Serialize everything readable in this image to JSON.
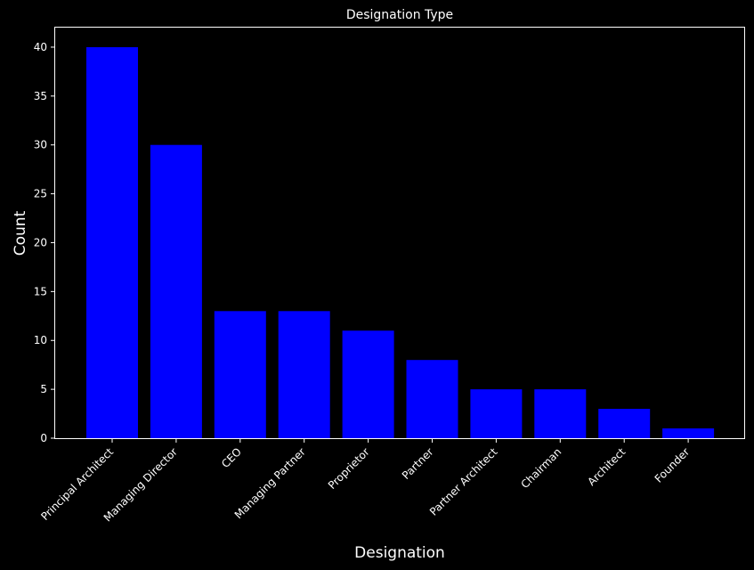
{
  "chart_data": {
    "type": "bar",
    "title": "Designation Type",
    "xlabel": "Designation",
    "ylabel": "Count",
    "categories": [
      "Principal Architect",
      "Managing Director",
      "CEO",
      "Managing Partner",
      "Proprietor",
      "Partner",
      "Partner Architect",
      "Chairman",
      "Architect",
      "Founder"
    ],
    "values": [
      40,
      30,
      13,
      13,
      11,
      8,
      5,
      5,
      3,
      1
    ],
    "ylim": [
      0,
      42
    ],
    "yticks": [
      0,
      5,
      10,
      15,
      20,
      25,
      30,
      35,
      40
    ],
    "grid": false,
    "bar_color": "#0000ff",
    "background_color": "#000000",
    "foreground_color": "#ffffff"
  }
}
